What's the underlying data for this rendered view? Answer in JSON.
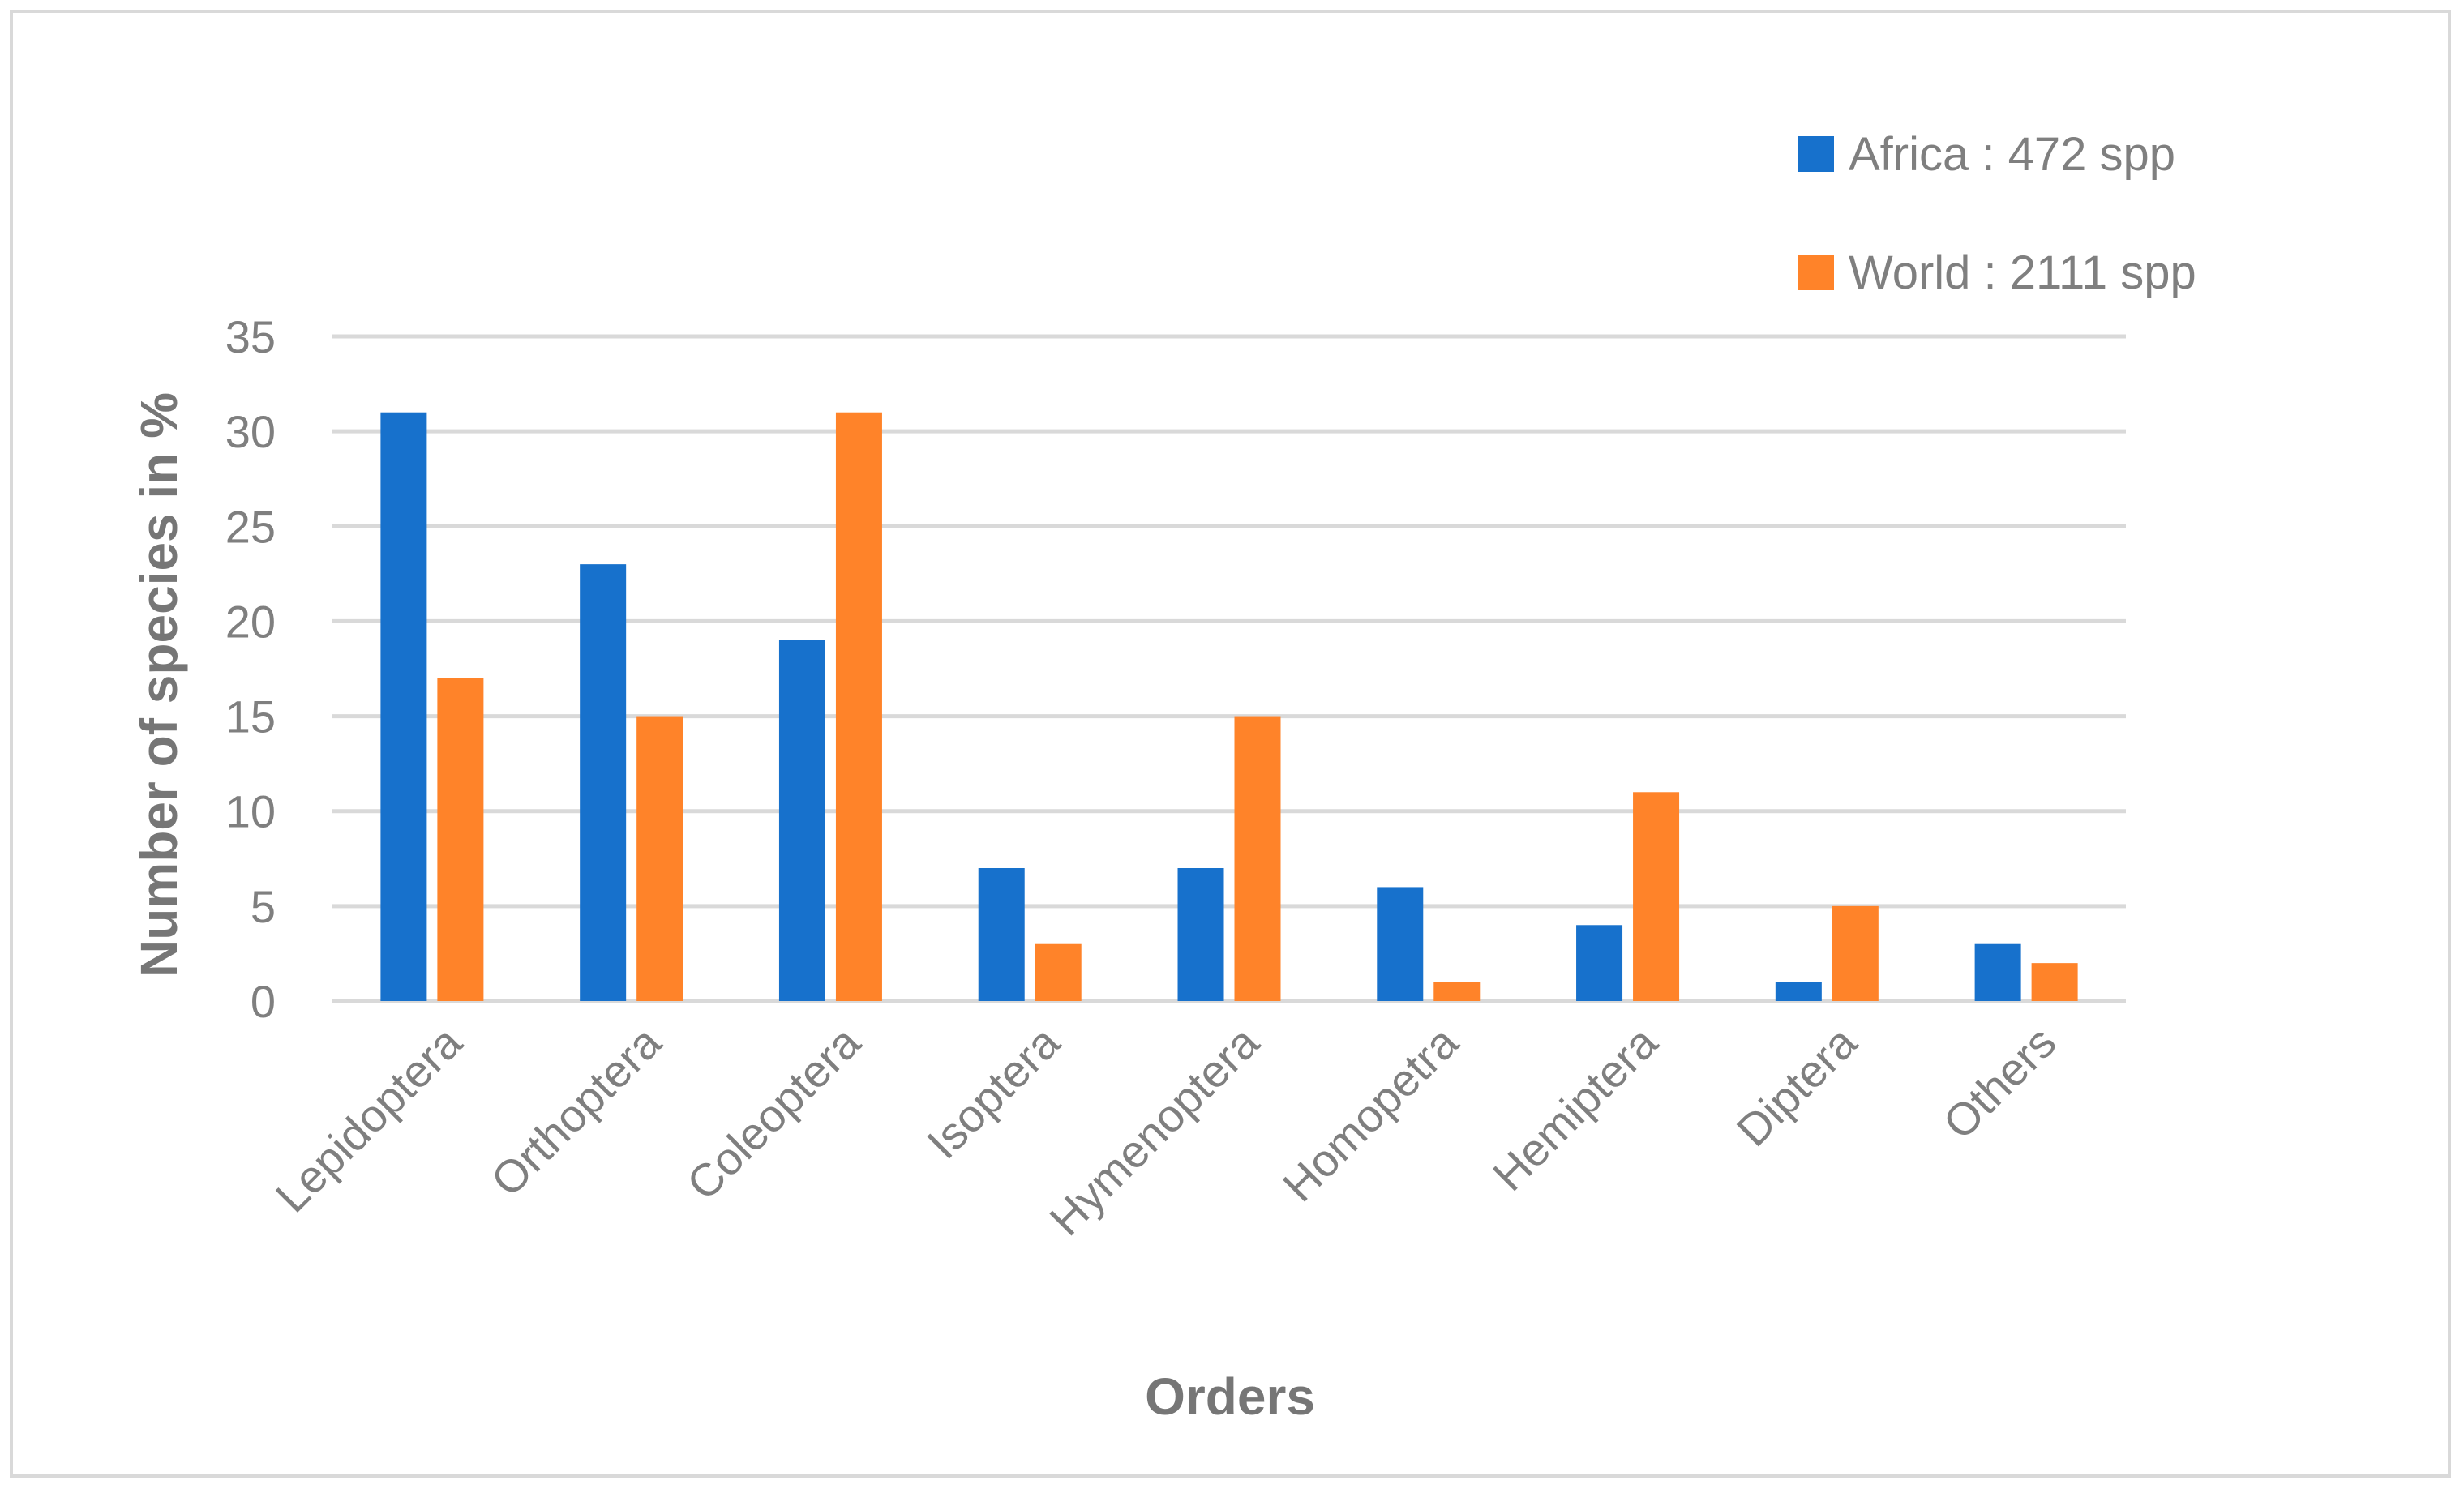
{
  "chart_data": {
    "type": "bar",
    "title": "",
    "xlabel": "Orders",
    "ylabel": "Number of species in %",
    "ylim": [
      0,
      35
    ],
    "yticks": [
      0,
      5,
      10,
      15,
      20,
      25,
      30,
      35
    ],
    "grid": true,
    "legend_position": "top-right",
    "categories": [
      "Lepidoptera",
      "Orthoptera",
      "Coleoptera",
      "Isoptera",
      "Hymenoptera",
      "Homopetra",
      "Hemiptera",
      "Diptera",
      "Others"
    ],
    "series": [
      {
        "name": "Africa : 472 spp",
        "color": "#1771cc",
        "values": [
          31,
          23,
          19,
          7,
          7,
          6,
          4,
          1,
          3
        ]
      },
      {
        "name": "World : 2111 spp",
        "color": "#ff8329",
        "values": [
          17,
          15,
          31,
          3,
          15,
          1,
          11,
          5,
          2
        ]
      }
    ]
  }
}
